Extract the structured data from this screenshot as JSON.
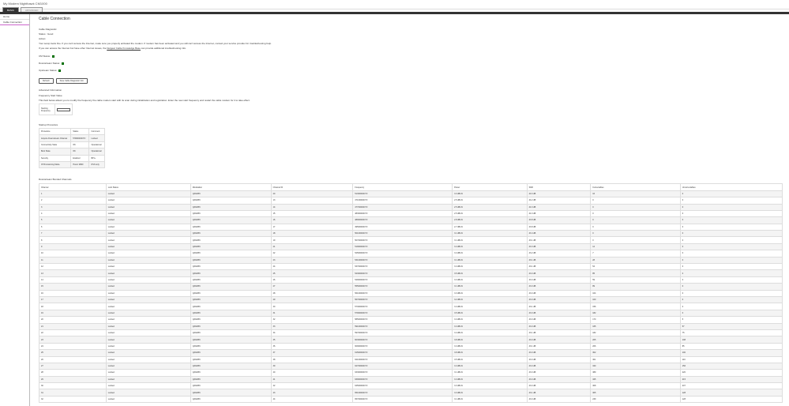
{
  "window_title": "My Modem Nighthawk CM1000",
  "tabs": [
    "BASIC",
    "ADVANCED"
  ],
  "sidebar": [
    "Home",
    "Cable Connection"
  ],
  "page_title": "Cable Connection",
  "diag": {
    "heading": "Cable Diagnostic",
    "status": "Status : Good",
    "action_label": "Action:",
    "line1": "Your setup looks fine. If you can't access the Internet, make sure you properly activated the modem. If modem has been activated and you still can't access the Internet, contact your service provider for troubleshooting help.",
    "line2a": "If you can access the Internet but have other Internet issues, the",
    "link": "Netgear Cable Knowledge Base",
    "line2b": "can provide additional troubleshooting info."
  },
  "statuses": [
    "CM Status:",
    "Downstream Status:",
    "Upstream Status:"
  ],
  "status_color": "#00a000",
  "buttons": [
    "Refresh",
    "Save Cable Diagnostic Info"
  ],
  "advanced": {
    "heading": "Advanced Information",
    "freq_heading": "Frequency Start Value",
    "freq_desc": "This field below allows you to modify the frequency the cable modem start with its scan during initialization and registration. Enter the new start frequency and restart the cable modem for it to take effect.",
    "freq_label": "Starting Frequency",
    "freq_value": ""
  },
  "startup": {
    "heading": "Startup Procedure",
    "headers": [
      "Procedure",
      "Status",
      "Comment"
    ],
    "rows": [
      [
        "Acquire Downstream Channel",
        "579000000 Hz",
        "Locked"
      ],
      [
        "Connectivity State",
        "OK",
        "Operational"
      ],
      [
        "Boot State",
        "OK",
        "Operational"
      ],
      [
        "Security",
        "Enabled",
        "BPI+"
      ],
      [
        "IP Provisioning Mode",
        "Honor MDD",
        "IPv6 only"
      ]
    ]
  },
  "downstream": {
    "heading": "Downstream Bonded Channels",
    "headers": [
      "Channel",
      "Lock Status",
      "Modulation",
      "Channel ID",
      "Frequency",
      "Power",
      "SNR",
      "Correctables",
      "Uncorrectables"
    ],
    "rows": [
      [
        "1",
        "Locked",
        "QAM256",
        "20",
        "513000000 Hz",
        "3.3 dBmV",
        "40.3 dB",
        "16",
        "0"
      ],
      [
        "2",
        "Locked",
        "QAM256",
        "13",
        "471000000 Hz",
        "2.5 dBmV",
        "44.2 dB",
        "0",
        "0"
      ],
      [
        "3",
        "Locked",
        "QAM256",
        "14",
        "477000000 Hz",
        "2.5 dBmV",
        "44.3 dB",
        "0",
        "0"
      ],
      [
        "4",
        "Locked",
        "QAM256",
        "15",
        "483000000 Hz",
        "2.5 dBmV",
        "44.3 dB",
        "0",
        "0"
      ],
      [
        "5",
        "Locked",
        "QAM256",
        "16",
        "489000000 Hz",
        "2.8 dBmV",
        "43.8 dB",
        "0",
        "0"
      ],
      [
        "6",
        "Locked",
        "QAM256",
        "17",
        "495000000 Hz",
        "2.7 dBmV",
        "43.8 dB",
        "0",
        "0"
      ],
      [
        "7",
        "Locked",
        "QAM256",
        "18",
        "501000000 Hz",
        "3.1 dBmV",
        "43.4 dB",
        "0",
        "0"
      ],
      [
        "8",
        "Locked",
        "QAM256",
        "19",
        "507000000 Hz",
        "3.1 dBmV",
        "43.1 dB",
        "0",
        "0"
      ],
      [
        "9",
        "Locked",
        "QAM256",
        "21",
        "519000000 Hz",
        "3.4 dBmV",
        "43.3 dB",
        "12",
        "0"
      ],
      [
        "10",
        "Locked",
        "QAM256",
        "22",
        "525000000 Hz",
        "3.4 dBmV",
        "43.2 dB",
        "7",
        "0"
      ],
      [
        "11",
        "Locked",
        "QAM256",
        "23",
        "531000000 Hz",
        "3.1 dBmV",
        "43.1 dB",
        "28",
        "0"
      ],
      [
        "12",
        "Locked",
        "QAM256",
        "24",
        "537000000 Hz",
        "3.4 dBmV",
        "43.1 dB",
        "54",
        "0"
      ],
      [
        "13",
        "Locked",
        "QAM256",
        "25",
        "543000000 Hz",
        "3.5 dBmV",
        "43.0 dB",
        "85",
        "0"
      ],
      [
        "14",
        "Locked",
        "QAM256",
        "26",
        "549000000 Hz",
        "3.3 dBmV",
        "43.0 dB",
        "59",
        "0"
      ],
      [
        "15",
        "Locked",
        "QAM256",
        "27",
        "555000000 Hz",
        "3.1 dBmV",
        "43.0 dB",
        "89",
        "0"
      ],
      [
        "16",
        "Locked",
        "QAM256",
        "28",
        "561000000 Hz",
        "3.3 dBmV",
        "43.0 dB",
        "104",
        "0"
      ],
      [
        "17",
        "Locked",
        "QAM256",
        "29",
        "567000000 Hz",
        "3.2 dBmV",
        "43.0 dB",
        "100",
        "0"
      ],
      [
        "18",
        "Locked",
        "QAM256",
        "30",
        "573000000 Hz",
        "3.4 dBmV",
        "43.1 dB",
        "156",
        "0"
      ],
      [
        "19",
        "Locked",
        "QAM256",
        "31",
        "579000000 Hz",
        "3.5 dBmV",
        "43.0 dB",
        "182",
        "0"
      ],
      [
        "20",
        "Locked",
        "QAM256",
        "32",
        "585000000 Hz",
        "3.4 dBmV",
        "43.0 dB",
        "170",
        "5"
      ],
      [
        "21",
        "Locked",
        "QAM256",
        "33",
        "591000000 Hz",
        "3.4 dBmV",
        "43.0 dB",
        "165",
        "57"
      ],
      [
        "22",
        "Locked",
        "QAM256",
        "34",
        "597000000 Hz",
        "3.4 dBmV",
        "43.1 dB",
        "182",
        "75"
      ],
      [
        "23",
        "Locked",
        "QAM256",
        "35",
        "603000000 Hz",
        "3.8 dBmV",
        "43.0 dB",
        "205",
        "108"
      ],
      [
        "24",
        "Locked",
        "QAM256",
        "36",
        "609000000 Hz",
        "3.4 dBmV",
        "43.1 dB",
        "206",
        "85"
      ],
      [
        "25",
        "Locked",
        "QAM256",
        "37",
        "615000000 Hz",
        "3.8 dBmV",
        "43.0 dB",
        "302",
        "100"
      ],
      [
        "26",
        "Locked",
        "QAM256",
        "38",
        "621000000 Hz",
        "3.5 dBmV",
        "43.0 dB",
        "301",
        "116"
      ],
      [
        "27",
        "Locked",
        "QAM256",
        "39",
        "627000000 Hz",
        "3.4 dBmV",
        "43.0 dB",
        "340",
        "156"
      ],
      [
        "28",
        "Locked",
        "QAM256",
        "40",
        "633000000 Hz",
        "3.1 dBmV",
        "43.0 dB",
        "389",
        "220"
      ],
      [
        "29",
        "Locked",
        "QAM256",
        "41",
        "639000000 Hz",
        "3.4 dBmV",
        "43.0 dB",
        "325",
        "215"
      ],
      [
        "30",
        "Locked",
        "QAM256",
        "42",
        "645000000 Hz",
        "3.3 dBmV",
        "43.0 dB",
        "308",
        "207"
      ],
      [
        "31",
        "Locked",
        "QAM256",
        "43",
        "651000000 Hz",
        "3.3 dBmV",
        "43.1 dB",
        "305",
        "128"
      ],
      [
        "32",
        "Locked",
        "QAM256",
        "44",
        "657000000 Hz",
        "3.1 dBmV",
        "43.0 dB",
        "239",
        "128"
      ]
    ]
  }
}
